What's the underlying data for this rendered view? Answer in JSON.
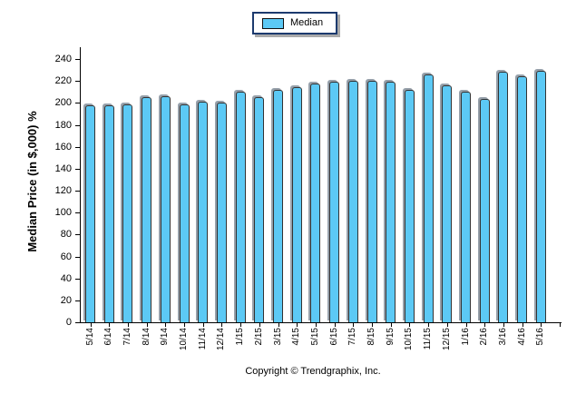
{
  "legend": {
    "label": "Median"
  },
  "footer": {
    "copyright": "Copyright © Trendgraphix, Inc."
  },
  "chart_data": {
    "type": "bar",
    "title": "",
    "categories": [
      "5/14",
      "6/14",
      "7/14",
      "8/14",
      "9/14",
      "10/14",
      "11/14",
      "12/14",
      "1/15",
      "2/15",
      "3/15",
      "4/15",
      "5/15",
      "6/15",
      "7/15",
      "8/15",
      "9/15",
      "10/15",
      "11/15",
      "12/15",
      "1/16",
      "2/16",
      "3/16",
      "4/16",
      "5/16"
    ],
    "series": [
      {
        "name": "Median",
        "values": [
          198,
          198,
          199,
          205,
          206,
          199,
          201,
          200,
          210,
          205,
          212,
          214,
          218,
          219,
          220,
          220,
          219,
          212,
          226,
          216,
          210,
          204,
          228,
          224,
          229
        ]
      }
    ],
    "xlabel": "",
    "ylabel": "Median Price (in $,000) %",
    "ylim": [
      0,
      240
    ],
    "ytick_step": 20,
    "bar_color": "#5cc9f5",
    "bar_border_color": "#333333",
    "bar_shadow_color": "#96a0aa",
    "legend_border_color": "#1c3a6e",
    "legend_position": "top-center",
    "grid": false
  }
}
